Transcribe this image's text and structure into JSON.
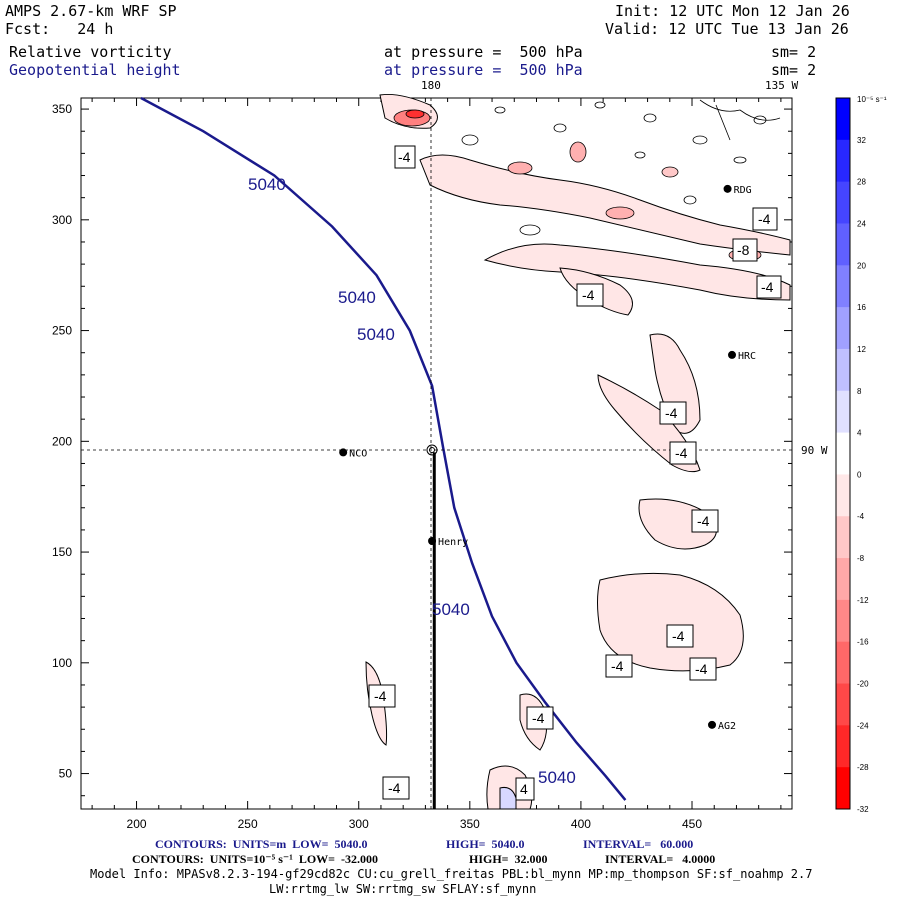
{
  "header": {
    "model": "AMPS 2.67-km WRF SP",
    "fcst": "Fcst:   24 h",
    "init": "Init: 12 UTC Mon 12 Jan 26",
    "valid": "Valid: 12 UTC Tue 13 Jan 26",
    "field1": "Relative vorticity",
    "field2": "Geopotential height",
    "pressure1": "at pressure =  500 hPa",
    "pressure2": "at pressure =  500 hPa",
    "sm1": "sm= 2",
    "sm2": "sm= 2",
    "lon180": "180",
    "lon135": "135 W",
    "lon90": "90 W"
  },
  "colorbar": {
    "unit_label": "10⁻⁵ s⁻¹",
    "ticks": [
      "32",
      "28",
      "24",
      "20",
      "16",
      "12",
      "8",
      "4",
      "0",
      "-4",
      "-8",
      "-12",
      "-16",
      "-20",
      "-24",
      "-28",
      "-32"
    ],
    "colors": [
      "#0000ff",
      "#2828ff",
      "#4545ff",
      "#6060ff",
      "#8080ff",
      "#a0a0ff",
      "#c0c0ff",
      "#e0e0ff",
      "#ffffff",
      "#ffe8e8",
      "#ffc8c8",
      "#ffa8a8",
      "#ff8888",
      "#ff6868",
      "#ff4848",
      "#ff2828",
      "#ff0000"
    ]
  },
  "stations": [
    {
      "name": "NCO",
      "x": 293,
      "y": 195
    },
    {
      "name": "Henry",
      "x": 333,
      "y": 155
    },
    {
      "name": "HRC",
      "x": 468,
      "y": 239
    },
    {
      "name": "RDG",
      "x": 466,
      "y": 314
    },
    {
      "name": "AG2",
      "x": 459,
      "y": 72
    }
  ],
  "contour_labels": {
    "height": [
      "5040",
      "5040",
      "5040",
      "5040",
      "5040"
    ],
    "vorticity": [
      "-4",
      "-4",
      "-4",
      "-8",
      "-4",
      "-4",
      "-4",
      "-4",
      "-4",
      "-4",
      "-4",
      "-4",
      "-4",
      "-4",
      "4"
    ]
  },
  "footer": {
    "line1_a": "CONTOURS:  UNITS=m  LOW=  5040.0",
    "line1_b": "HIGH=  5040.0",
    "line1_c": "INTERVAL=   60.000",
    "line2_a": "CONTOURS:  UNITS=10⁻⁵ s⁻¹  LOW=  -32.000",
    "line2_b": "HIGH=  32.000",
    "line2_c": "INTERVAL=   4.0000",
    "line3": "Model Info: MPASv8.2.3-194-gf29cd82c CU:cu_grell_freitas PBL:bl_mynn MP:mp_thompson SF:sf_noahmp 2.7",
    "line4": "LW:rrtmg_lw SW:rrtmg_sw SFLAY:sf_mynn"
  },
  "chart_data": {
    "type": "contour-map",
    "x_ticks": [
      200,
      250,
      300,
      350,
      400,
      450
    ],
    "y_ticks": [
      50,
      100,
      150,
      200,
      250,
      300,
      350
    ],
    "xlim": [
      175,
      495
    ],
    "ylim": [
      34,
      355
    ],
    "height_contour_5040": [
      [
        202,
        355
      ],
      [
        230,
        340
      ],
      [
        262,
        320
      ],
      [
        288,
        297
      ],
      [
        308,
        275
      ],
      [
        323,
        250
      ],
      [
        333,
        225
      ],
      [
        338,
        197
      ],
      [
        343,
        170
      ],
      [
        351,
        145
      ],
      [
        360,
        121
      ],
      [
        371,
        100
      ],
      [
        384,
        82
      ],
      [
        398,
        64
      ],
      [
        411,
        49
      ],
      [
        420,
        38
      ]
    ],
    "cross_section": {
      "x": 334,
      "y_start": 195,
      "y_end": 34
    }
  }
}
